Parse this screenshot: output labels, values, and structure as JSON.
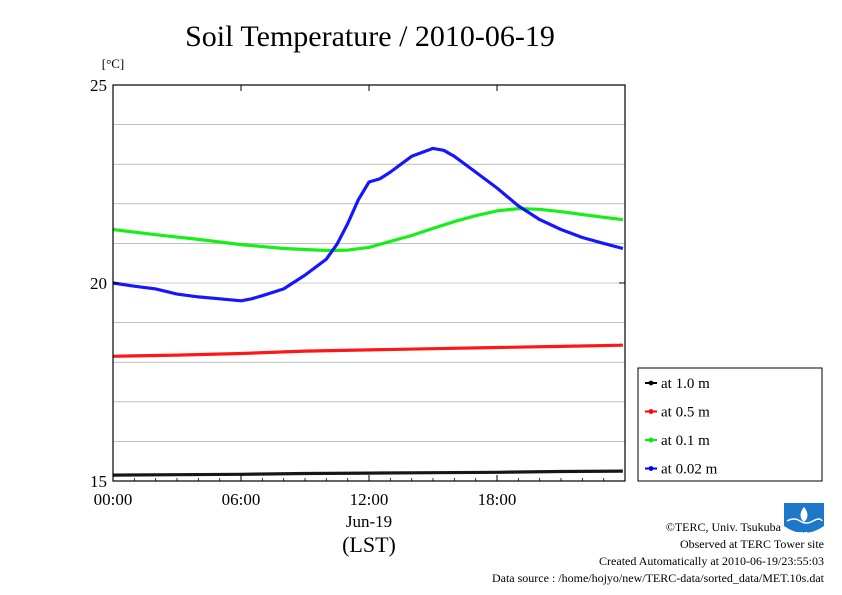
{
  "chart_data": {
    "type": "line",
    "title": "Soil Temperature / 2010-06-19",
    "y_unit": "[°C]",
    "xlabel": "(LST)",
    "x_date_label": "Jun-19",
    "xlim": [
      0,
      23.9
    ],
    "ylim": [
      15,
      25
    ],
    "x_ticks": [
      "00:00",
      "06:00",
      "12:00",
      "18:00"
    ],
    "y_ticks": [
      "15",
      "20",
      "25"
    ],
    "grid": true,
    "legend_position": "right",
    "series": [
      {
        "name": "at 1.0 m",
        "color": "#000000",
        "x": [
          0,
          3,
          6,
          9,
          12,
          15,
          18,
          21,
          23.9
        ],
        "y": [
          15.15,
          15.16,
          15.17,
          15.19,
          15.2,
          15.21,
          15.22,
          15.24,
          15.25
        ]
      },
      {
        "name": "at 0.5 m",
        "color": "#ff0000",
        "x": [
          0,
          3,
          6,
          9,
          12,
          15,
          18,
          21,
          23.9
        ],
        "y": [
          18.15,
          18.18,
          18.22,
          18.28,
          18.31,
          18.34,
          18.37,
          18.4,
          18.43
        ]
      },
      {
        "name": "at 0.1 m",
        "color": "#00ee00",
        "x": [
          0,
          2,
          4,
          6,
          8,
          10,
          11,
          12,
          13,
          14,
          15,
          16,
          17,
          18,
          19,
          20,
          21,
          22,
          23,
          23.9
        ],
        "y": [
          21.35,
          21.22,
          21.1,
          20.97,
          20.87,
          20.82,
          20.83,
          20.9,
          21.05,
          21.2,
          21.38,
          21.55,
          21.7,
          21.82,
          21.88,
          21.86,
          21.8,
          21.73,
          21.66,
          21.6
        ]
      },
      {
        "name": "at 0.02 m",
        "color": "#0000ff",
        "x": [
          0,
          1,
          2,
          3,
          4,
          5,
          6,
          6.5,
          7,
          8,
          9,
          10,
          10.5,
          11,
          11.5,
          12,
          12.5,
          13,
          13.5,
          14,
          15,
          15.5,
          16,
          17,
          18,
          19,
          20,
          21,
          22,
          23,
          23.9
        ],
        "y": [
          20.0,
          19.92,
          19.85,
          19.72,
          19.65,
          19.6,
          19.55,
          19.6,
          19.68,
          19.85,
          20.2,
          20.6,
          20.98,
          21.5,
          22.1,
          22.55,
          22.63,
          22.8,
          23.0,
          23.2,
          23.4,
          23.35,
          23.2,
          22.8,
          22.4,
          21.95,
          21.6,
          21.35,
          21.15,
          21.0,
          20.87
        ]
      }
    ]
  },
  "credits": {
    "copyright": "©TERC, Univ. Tsukuba",
    "observed": "Observed at TERC Tower site",
    "created": "Created Automatically at 2010-06-19/23:55:03",
    "source": "Data source : /home/hojyo/new/TERC-data/sorted_data/MET.10s.dat",
    "logo_text": "TERC"
  }
}
